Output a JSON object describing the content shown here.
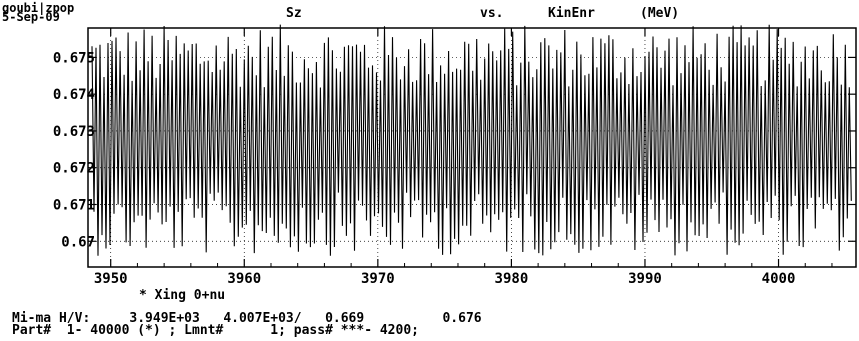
{
  "header": {
    "line1": "goubi|zpop",
    "line2": "5-Sep-09"
  },
  "title": {
    "y_variable": "Sz",
    "vs": "vs.",
    "x_variable": "KinEnr",
    "x_unit": "(MeV)"
  },
  "footer": {
    "line1": "Mi-ma H/V:     3.949E+03   4.007E+03/   0.669          0.676",
    "line2": "Part#  1- 40000 (*) ; Lmnt#      1; pass# ***- 4200;"
  },
  "chart_data": {
    "type": "line",
    "title": "Sz  vs.  KinEnr  (MeV)",
    "xlabel": "* Xing 0+nu",
    "ylabel": "",
    "xlim": [
      3948.3,
      4005.8
    ],
    "ylim": [
      0.6693,
      0.6758
    ],
    "x_ticks": [
      "3950",
      "3960",
      "3970",
      "3980",
      "3990",
      "4000"
    ],
    "x_tick_values": [
      3950,
      3960,
      3970,
      3980,
      3990,
      4000
    ],
    "y_ticks": [
      "0.67",
      "0.671",
      "0.672",
      "0.673",
      "0.674",
      "0.675"
    ],
    "y_tick_values": [
      0.67,
      0.671,
      0.672,
      0.673,
      0.674,
      0.675
    ],
    "grid": true,
    "series": [
      {
        "x_start": 3948.6,
        "x_end": 4005.6,
        "oscillations": 190,
        "y_center": 0.67275,
        "y_min": 0.6694,
        "y_max": 0.6757,
        "color": "#000000"
      }
    ]
  }
}
